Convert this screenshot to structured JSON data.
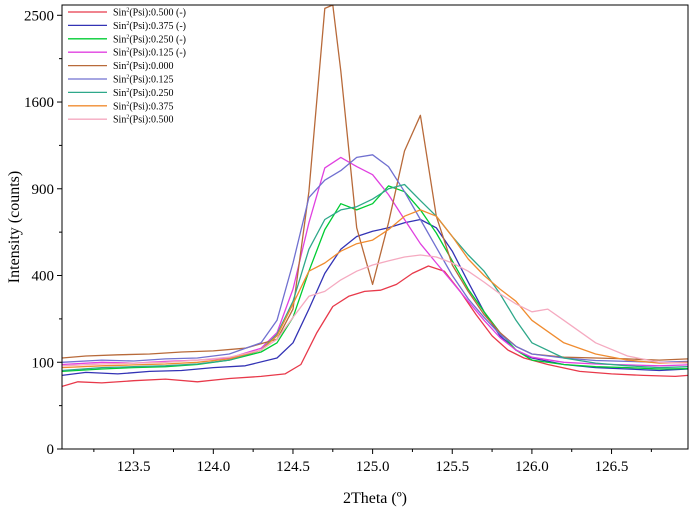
{
  "chart_data": {
    "type": "line",
    "title": "",
    "xlabel": "2Theta (º)",
    "ylabel": "Intensity (counts)",
    "xlim": [
      123.05,
      126.98
    ],
    "ylim": [
      0,
      2620
    ],
    "y_scale": "sqrt",
    "x_ticks": [
      123.5,
      124.0,
      124.5,
      125.0,
      125.5,
      126.0,
      126.5
    ],
    "x_tick_labels": [
      "123.5",
      "124.0",
      "124.5",
      "125.0",
      "125.5",
      "126.0",
      "126.5"
    ],
    "y_ticks": [
      0,
      100,
      400,
      900,
      1600,
      2500
    ],
    "y_tick_labels": [
      "0",
      "100",
      "400",
      "900",
      "1600",
      "2500"
    ],
    "grid": false,
    "legend_position": "top-left",
    "series": [
      {
        "name": "Sin²(Psi):0.500 (-)",
        "legend_main": "Sin",
        "legend_sup": "2",
        "legend_rest": "(Psi):0.500 (-)",
        "color": "#e8394a",
        "points": [
          [
            123.05,
            52
          ],
          [
            123.15,
            60
          ],
          [
            123.3,
            58
          ],
          [
            123.5,
            62
          ],
          [
            123.7,
            65
          ],
          [
            123.9,
            60
          ],
          [
            124.1,
            66
          ],
          [
            124.3,
            70
          ],
          [
            124.45,
            75
          ],
          [
            124.55,
            95
          ],
          [
            124.65,
            180
          ],
          [
            124.75,
            270
          ],
          [
            124.85,
            310
          ],
          [
            124.95,
            330
          ],
          [
            125.05,
            335
          ],
          [
            125.15,
            360
          ],
          [
            125.25,
            410
          ],
          [
            125.35,
            445
          ],
          [
            125.45,
            420
          ],
          [
            125.55,
            330
          ],
          [
            125.65,
            240
          ],
          [
            125.75,
            170
          ],
          [
            125.85,
            130
          ],
          [
            125.95,
            110
          ],
          [
            126.1,
            95
          ],
          [
            126.3,
            80
          ],
          [
            126.5,
            75
          ],
          [
            126.7,
            72
          ],
          [
            126.9,
            70
          ],
          [
            126.98,
            72
          ]
        ]
      },
      {
        "name": "Sin²(Psi):0.375 (-)",
        "legend_main": "Sin",
        "legend_sup": "2",
        "legend_rest": "(Psi):0.375 (-)",
        "color": "#3333b5",
        "points": [
          [
            123.05,
            72
          ],
          [
            123.2,
            78
          ],
          [
            123.4,
            75
          ],
          [
            123.6,
            80
          ],
          [
            123.8,
            82
          ],
          [
            124.0,
            88
          ],
          [
            124.2,
            92
          ],
          [
            124.4,
            110
          ],
          [
            124.5,
            150
          ],
          [
            124.6,
            260
          ],
          [
            124.7,
            410
          ],
          [
            124.8,
            530
          ],
          [
            124.9,
            600
          ],
          [
            125.0,
            630
          ],
          [
            125.1,
            650
          ],
          [
            125.2,
            680
          ],
          [
            125.3,
            700
          ],
          [
            125.4,
            650
          ],
          [
            125.5,
            520
          ],
          [
            125.6,
            370
          ],
          [
            125.7,
            250
          ],
          [
            125.8,
            170
          ],
          [
            125.9,
            130
          ],
          [
            126.0,
            110
          ],
          [
            126.2,
            95
          ],
          [
            126.4,
            88
          ],
          [
            126.6,
            85
          ],
          [
            126.8,
            82
          ],
          [
            126.98,
            85
          ]
        ]
      },
      {
        "name": "Sin²(Psi):0.250 (-)",
        "legend_main": "Sin",
        "legend_sup": "2",
        "legend_rest": "(Psi):0.250 (-)",
        "color": "#00cc33",
        "points": [
          [
            123.05,
            80
          ],
          [
            123.3,
            85
          ],
          [
            123.5,
            88
          ],
          [
            123.7,
            90
          ],
          [
            123.9,
            95
          ],
          [
            124.1,
            105
          ],
          [
            124.3,
            125
          ],
          [
            124.4,
            150
          ],
          [
            124.5,
            230
          ],
          [
            124.6,
            420
          ],
          [
            124.7,
            640
          ],
          [
            124.8,
            800
          ],
          [
            124.9,
            760
          ],
          [
            125.0,
            800
          ],
          [
            125.1,
            920
          ],
          [
            125.2,
            880
          ],
          [
            125.3,
            760
          ],
          [
            125.4,
            620
          ],
          [
            125.5,
            470
          ],
          [
            125.6,
            340
          ],
          [
            125.7,
            250
          ],
          [
            125.8,
            180
          ],
          [
            125.9,
            130
          ],
          [
            126.0,
            105
          ],
          [
            126.2,
            95
          ],
          [
            126.4,
            90
          ],
          [
            126.6,
            88
          ],
          [
            126.8,
            85
          ],
          [
            126.98,
            86
          ]
        ]
      },
      {
        "name": "Sin²(Psi):0.125 (-)",
        "legend_main": "Sin",
        "legend_sup": "2",
        "legend_rest": "(Psi):0.125 (-)",
        "color": "#e040e0",
        "points": [
          [
            123.05,
            95
          ],
          [
            123.3,
            100
          ],
          [
            123.5,
            98
          ],
          [
            123.7,
            102
          ],
          [
            123.9,
            105
          ],
          [
            124.1,
            110
          ],
          [
            124.3,
            135
          ],
          [
            124.4,
            180
          ],
          [
            124.5,
            340
          ],
          [
            124.6,
            680
          ],
          [
            124.7,
            1050
          ],
          [
            124.8,
            1130
          ],
          [
            124.9,
            1060
          ],
          [
            125.0,
            1000
          ],
          [
            125.1,
            860
          ],
          [
            125.2,
            700
          ],
          [
            125.3,
            560
          ],
          [
            125.4,
            460
          ],
          [
            125.5,
            370
          ],
          [
            125.6,
            290
          ],
          [
            125.7,
            220
          ],
          [
            125.8,
            165
          ],
          [
            125.9,
            130
          ],
          [
            126.0,
            112
          ],
          [
            126.2,
            100
          ],
          [
            126.4,
            96
          ],
          [
            126.6,
            94
          ],
          [
            126.8,
            92
          ],
          [
            126.98,
            94
          ]
        ]
      },
      {
        "name": "Sin²(Psi):0.000",
        "legend_main": "Sin",
        "legend_sup": "2",
        "legend_rest": "(Psi):0.000",
        "color": "#b86a3a",
        "points": [
          [
            123.05,
            110
          ],
          [
            123.2,
            115
          ],
          [
            123.4,
            118
          ],
          [
            123.6,
            120
          ],
          [
            123.8,
            125
          ],
          [
            124.0,
            128
          ],
          [
            124.2,
            135
          ],
          [
            124.4,
            160
          ],
          [
            124.5,
            260
          ],
          [
            124.6,
            880
          ],
          [
            124.7,
            2580
          ],
          [
            124.75,
            2620
          ],
          [
            124.8,
            1900
          ],
          [
            124.9,
            650
          ],
          [
            125.0,
            360
          ],
          [
            125.1,
            680
          ],
          [
            125.2,
            1180
          ],
          [
            125.3,
            1480
          ],
          [
            125.4,
            720
          ],
          [
            125.5,
            450
          ],
          [
            125.6,
            330
          ],
          [
            125.7,
            240
          ],
          [
            125.8,
            180
          ],
          [
            125.9,
            140
          ],
          [
            126.0,
            120
          ],
          [
            126.2,
            112
          ],
          [
            126.4,
            110
          ],
          [
            126.6,
            108
          ],
          [
            126.8,
            105
          ],
          [
            126.98,
            108
          ]
        ]
      },
      {
        "name": "Sin²(Psi):0.125",
        "legend_main": "Sin",
        "legend_sup": "2",
        "legend_rest": "(Psi):0.125",
        "color": "#7070d0",
        "points": [
          [
            123.05,
            100
          ],
          [
            123.3,
            105
          ],
          [
            123.5,
            103
          ],
          [
            123.7,
            108
          ],
          [
            123.9,
            110
          ],
          [
            124.1,
            120
          ],
          [
            124.3,
            150
          ],
          [
            124.4,
            220
          ],
          [
            124.5,
            460
          ],
          [
            124.6,
            840
          ],
          [
            124.7,
            960
          ],
          [
            124.8,
            1030
          ],
          [
            124.9,
            1130
          ],
          [
            125.0,
            1150
          ],
          [
            125.1,
            1060
          ],
          [
            125.2,
            880
          ],
          [
            125.3,
            700
          ],
          [
            125.4,
            540
          ],
          [
            125.5,
            400
          ],
          [
            125.6,
            300
          ],
          [
            125.7,
            230
          ],
          [
            125.8,
            175
          ],
          [
            125.9,
            140
          ],
          [
            126.0,
            120
          ],
          [
            126.2,
            110
          ],
          [
            126.4,
            104
          ],
          [
            126.6,
            102
          ],
          [
            126.8,
            100
          ],
          [
            126.98,
            102
          ]
        ]
      },
      {
        "name": "Sin²(Psi):0.250",
        "legend_main": "Sin",
        "legend_sup": "2",
        "legend_rest": "(Psi):0.250",
        "color": "#2ea88a",
        "points": [
          [
            123.05,
            82
          ],
          [
            123.3,
            88
          ],
          [
            123.5,
            90
          ],
          [
            123.7,
            92
          ],
          [
            123.9,
            96
          ],
          [
            124.1,
            105
          ],
          [
            124.3,
            130
          ],
          [
            124.4,
            175
          ],
          [
            124.5,
            290
          ],
          [
            124.6,
            530
          ],
          [
            124.7,
            700
          ],
          [
            124.8,
            760
          ],
          [
            124.9,
            780
          ],
          [
            125.0,
            830
          ],
          [
            125.1,
            900
          ],
          [
            125.2,
            930
          ],
          [
            125.3,
            820
          ],
          [
            125.4,
            720
          ],
          [
            125.5,
            600
          ],
          [
            125.6,
            500
          ],
          [
            125.7,
            420
          ],
          [
            125.8,
            320
          ],
          [
            125.9,
            220
          ],
          [
            126.0,
            150
          ],
          [
            126.2,
            110
          ],
          [
            126.4,
            98
          ],
          [
            126.6,
            92
          ],
          [
            126.8,
            88
          ],
          [
            126.98,
            90
          ]
        ]
      },
      {
        "name": "Sin²(Psi):0.375",
        "legend_main": "Sin",
        "legend_sup": "2",
        "legend_rest": "(Psi):0.375",
        "color": "#f08c30",
        "points": [
          [
            123.05,
            88
          ],
          [
            123.3,
            92
          ],
          [
            123.5,
            94
          ],
          [
            123.7,
            96
          ],
          [
            123.9,
            100
          ],
          [
            124.1,
            108
          ],
          [
            124.3,
            130
          ],
          [
            124.4,
            170
          ],
          [
            124.5,
            280
          ],
          [
            124.6,
            420
          ],
          [
            124.7,
            460
          ],
          [
            124.8,
            520
          ],
          [
            124.9,
            560
          ],
          [
            125.0,
            580
          ],
          [
            125.1,
            640
          ],
          [
            125.2,
            720
          ],
          [
            125.3,
            760
          ],
          [
            125.4,
            720
          ],
          [
            125.5,
            600
          ],
          [
            125.6,
            480
          ],
          [
            125.7,
            400
          ],
          [
            125.8,
            340
          ],
          [
            125.9,
            290
          ],
          [
            126.0,
            220
          ],
          [
            126.2,
            150
          ],
          [
            126.4,
            120
          ],
          [
            126.6,
            105
          ],
          [
            126.8,
            98
          ],
          [
            126.98,
            100
          ]
        ]
      },
      {
        "name": "Sin²(Psi):0.500",
        "legend_main": "Sin",
        "legend_sup": "2",
        "legend_rest": "(Psi):0.500",
        "color": "#f5aac0",
        "points": [
          [
            123.05,
            92
          ],
          [
            123.3,
            96
          ],
          [
            123.5,
            98
          ],
          [
            123.7,
            100
          ],
          [
            123.9,
            105
          ],
          [
            124.1,
            112
          ],
          [
            124.3,
            130
          ],
          [
            124.4,
            160
          ],
          [
            124.5,
            230
          ],
          [
            124.6,
            310
          ],
          [
            124.7,
            330
          ],
          [
            124.8,
            380
          ],
          [
            124.9,
            420
          ],
          [
            125.0,
            450
          ],
          [
            125.1,
            470
          ],
          [
            125.2,
            490
          ],
          [
            125.3,
            500
          ],
          [
            125.4,
            490
          ],
          [
            125.5,
            460
          ],
          [
            125.6,
            420
          ],
          [
            125.7,
            370
          ],
          [
            125.8,
            320
          ],
          [
            125.9,
            280
          ],
          [
            126.0,
            250
          ],
          [
            126.1,
            260
          ],
          [
            126.2,
            220
          ],
          [
            126.4,
            150
          ],
          [
            126.6,
            115
          ],
          [
            126.8,
            100
          ],
          [
            126.98,
            98
          ]
        ]
      }
    ]
  }
}
